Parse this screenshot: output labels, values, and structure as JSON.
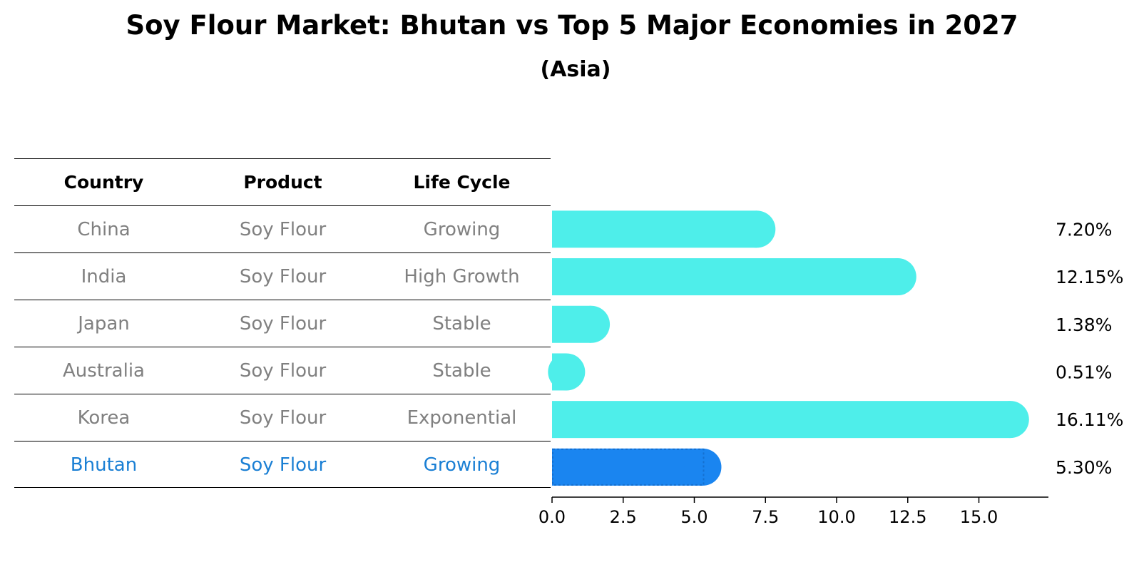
{
  "title": "Soy Flour Market: Bhutan vs Top 5 Major Economies in 2027",
  "subtitle": "(Asia)",
  "table": {
    "headers": [
      "Country",
      "Product",
      "Life Cycle"
    ],
    "rows": [
      [
        "China",
        "Soy Flour",
        "Growing"
      ],
      [
        "India",
        "Soy Flour",
        "High Growth"
      ],
      [
        "Japan",
        "Soy Flour",
        "Stable"
      ],
      [
        "Australia",
        "Soy Flour",
        "Stable"
      ],
      [
        "Korea",
        "Soy Flour",
        "Exponential"
      ],
      [
        "Bhutan",
        "Soy Flour",
        "Growing"
      ]
    ]
  },
  "colors": {
    "bar": "#4eeeea",
    "highlight_bar": "#1a85f0",
    "highlight_text": "#1a7fd4",
    "muted_text": "#808080"
  },
  "chart_data": {
    "type": "bar",
    "orientation": "horizontal",
    "categories": [
      "China",
      "India",
      "Japan",
      "Australia",
      "Korea",
      "Bhutan"
    ],
    "values": [
      7.2,
      12.15,
      1.38,
      0.51,
      16.11,
      5.3
    ],
    "value_labels": [
      "7.20%",
      "12.15%",
      "1.38%",
      "0.51%",
      "16.11%",
      "5.30%"
    ],
    "highlight": "Bhutan",
    "xlim": [
      0,
      17
    ],
    "xticks": [
      0.0,
      2.5,
      5.0,
      7.5,
      10.0,
      12.5,
      15.0
    ],
    "xtick_labels": [
      "0.0",
      "2.5",
      "5.0",
      "7.5",
      "10.0",
      "12.5",
      "15.0"
    ],
    "grid": false
  }
}
